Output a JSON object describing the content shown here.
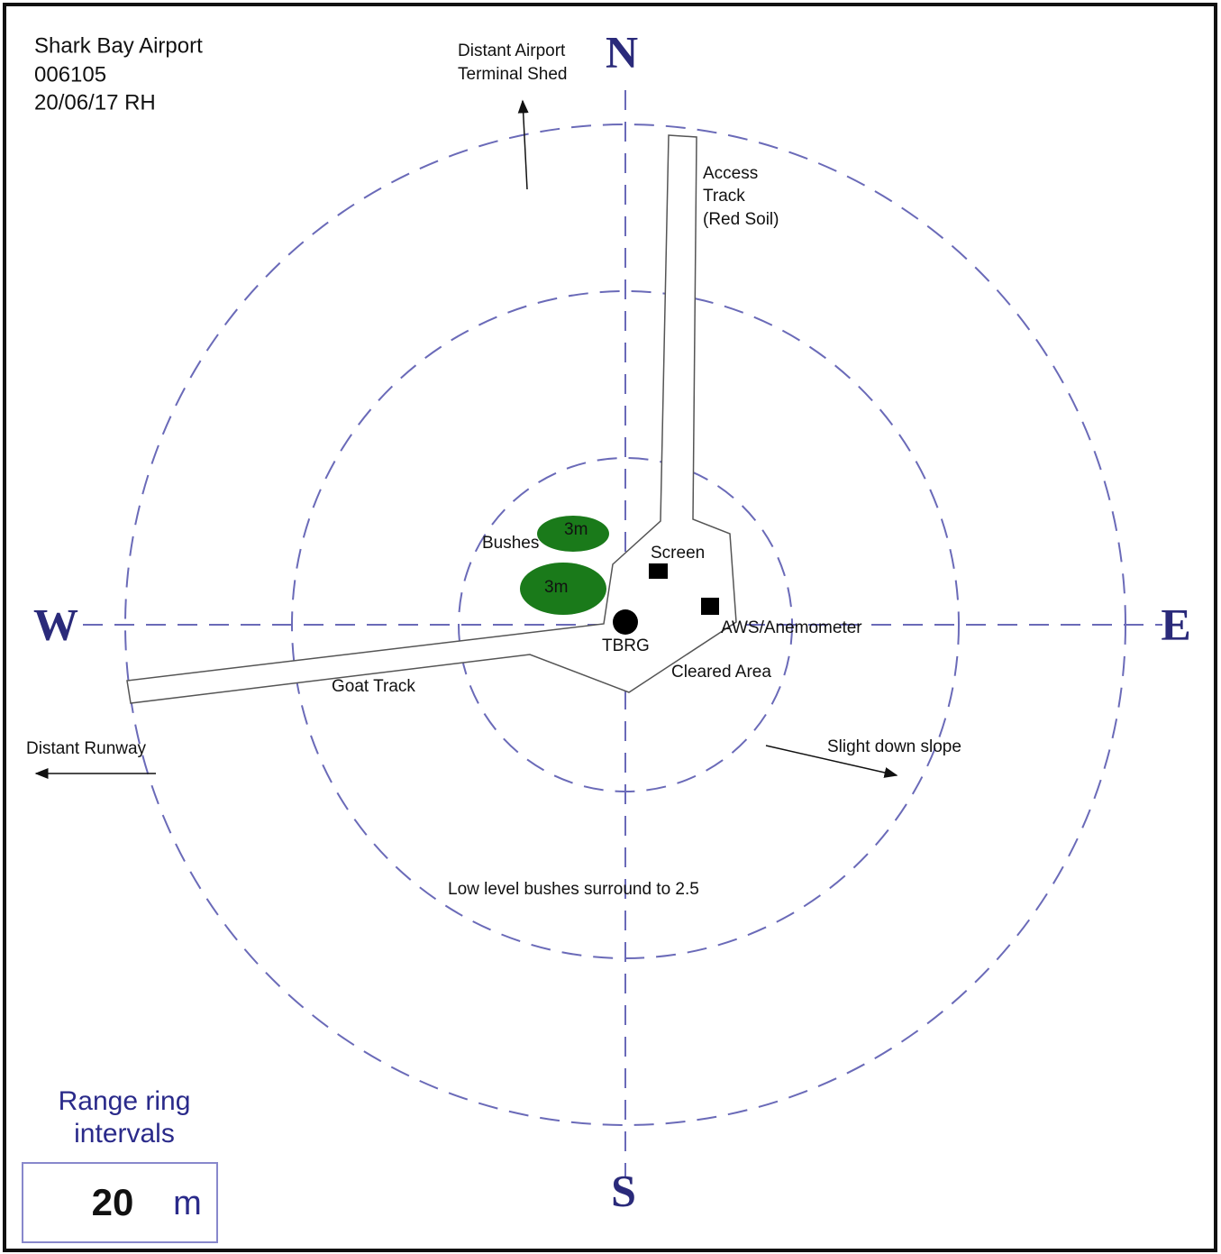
{
  "header": {
    "title": "Shark Bay Airport",
    "station": "006105",
    "date": "20/06/17 RH"
  },
  "compass": {
    "north": "N",
    "south": "S",
    "east": "E",
    "west": "W"
  },
  "labels": {
    "terminal": [
      "Distant Airport",
      "Terminal Shed"
    ],
    "access_track": [
      "Access",
      "Track",
      "(Red Soil)"
    ],
    "bushes": "Bushes",
    "bush_height_1": "3m",
    "bush_height_2": "3m",
    "screen": "Screen",
    "aws": "AWS/Anemometer",
    "tbrg": "TBRG",
    "cleared_area": "Cleared Area",
    "goat_track": "Goat Track",
    "runway": "Distant Runway",
    "slope": "Slight down slope",
    "low_bushes": "Low level bushes surround to 2.5"
  },
  "legend": {
    "title": [
      "Range ring",
      "intervals"
    ],
    "value": 20,
    "unit": "m"
  }
}
